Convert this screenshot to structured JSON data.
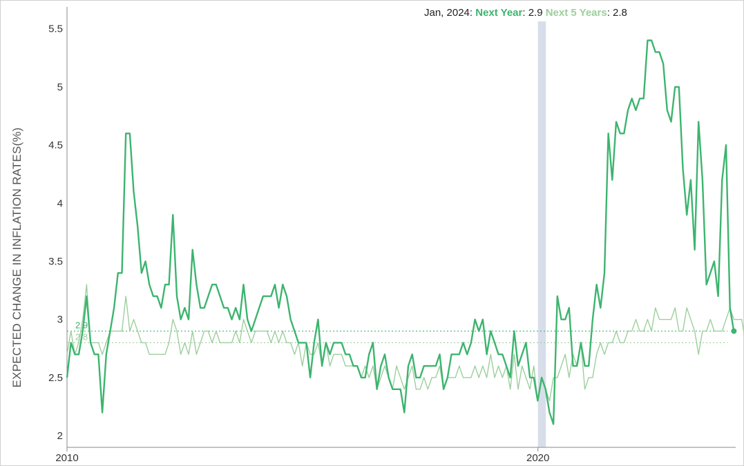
{
  "readout": {
    "date": "Jan, 2024",
    "series1_label": "Next Year",
    "series1_value": "2.9",
    "series2_label": "Next 5 Years",
    "series2_value": "2.8"
  },
  "chart_data": {
    "type": "line",
    "ylabel": "EXPECTED CHANGE IN INFLATION RATES(%)",
    "xlabel": "",
    "ylim": [
      1.9,
      5.7
    ],
    "xlim": [
      2010.0,
      2024.2
    ],
    "yticks": [
      "2",
      "2.5",
      "3",
      "3.5",
      "4",
      "4.5",
      "5",
      "5.5"
    ],
    "xticks": [
      {
        "label": "2010",
        "value": 2010
      },
      {
        "label": "2020",
        "value": 2020
      }
    ],
    "grid": false,
    "recession_band": [
      2020.0,
      2020.17
    ],
    "reference_lines": [
      {
        "value": 2.9,
        "label": "2.9",
        "color": "#3cb46e"
      },
      {
        "value": 2.8,
        "label": "2.8",
        "color": "#9ccf9c"
      }
    ],
    "series": [
      {
        "name": "Next Year",
        "color": "#3cb46e",
        "x_start": 2010.0,
        "x_step": 0.0833,
        "values": [
          2.5,
          2.8,
          2.7,
          2.7,
          2.9,
          3.2,
          2.8,
          2.7,
          2.7,
          2.2,
          2.7,
          2.9,
          3.1,
          3.4,
          3.4,
          4.6,
          4.6,
          4.1,
          3.8,
          3.4,
          3.5,
          3.3,
          3.2,
          3.2,
          3.1,
          3.3,
          3.3,
          3.9,
          3.2,
          3.0,
          3.1,
          3.0,
          3.6,
          3.3,
          3.1,
          3.1,
          3.2,
          3.3,
          3.3,
          3.2,
          3.1,
          3.1,
          3.0,
          3.1,
          3.0,
          3.3,
          3.0,
          2.9,
          3.0,
          3.1,
          3.2,
          3.2,
          3.2,
          3.3,
          3.1,
          3.3,
          3.2,
          3.0,
          2.9,
          2.8,
          2.8,
          2.8,
          2.5,
          2.8,
          3.0,
          2.6,
          2.8,
          2.7,
          2.8,
          2.8,
          2.8,
          2.7,
          2.7,
          2.6,
          2.6,
          2.5,
          2.5,
          2.7,
          2.8,
          2.4,
          2.6,
          2.7,
          2.5,
          2.4,
          2.4,
          2.4,
          2.2,
          2.6,
          2.7,
          2.5,
          2.5,
          2.6,
          2.6,
          2.6,
          2.6,
          2.7,
          2.4,
          2.5,
          2.7,
          2.7,
          2.7,
          2.8,
          2.7,
          2.8,
          3.0,
          2.9,
          3.0,
          2.7,
          2.9,
          2.8,
          2.7,
          2.7,
          2.6,
          2.5,
          2.9,
          2.6,
          2.7,
          2.8,
          2.5,
          2.5,
          2.3,
          2.5,
          2.4,
          2.2,
          2.1,
          3.2,
          3.0,
          3.0,
          3.1,
          2.6,
          2.6,
          2.8,
          2.6,
          2.6,
          3.0,
          3.3,
          3.1,
          3.4,
          4.6,
          4.2,
          4.7,
          4.6,
          4.6,
          4.8,
          4.9,
          4.8,
          4.9,
          4.9,
          5.4,
          5.4,
          5.3,
          5.3,
          5.2,
          4.8,
          4.7,
          5.0,
          5.0,
          4.3,
          3.9,
          4.2,
          3.6,
          4.7,
          4.2,
          3.3,
          3.4,
          3.5,
          3.2,
          4.2,
          4.5,
          3.1,
          2.9
        ]
      },
      {
        "name": "Next 5 Years",
        "color": "#9ccf9c",
        "x_start": 2010.0,
        "x_step": 0.0833,
        "values": [
          2.7,
          2.9,
          2.7,
          2.8,
          3.0,
          3.3,
          2.8,
          2.8,
          2.8,
          2.7,
          2.8,
          2.9,
          2.9,
          2.9,
          2.9,
          3.2,
          2.9,
          3.0,
          2.9,
          2.8,
          2.8,
          2.7,
          2.7,
          2.7,
          2.7,
          2.7,
          2.8,
          3.0,
          2.9,
          2.7,
          2.8,
          2.7,
          2.9,
          2.7,
          2.8,
          2.9,
          2.9,
          2.8,
          2.9,
          2.8,
          2.8,
          2.8,
          2.8,
          2.9,
          2.8,
          3.0,
          2.9,
          2.8,
          2.9,
          2.9,
          2.9,
          2.9,
          2.8,
          2.9,
          2.8,
          2.9,
          2.8,
          2.8,
          2.7,
          2.8,
          2.6,
          2.8,
          2.7,
          2.7,
          2.8,
          2.6,
          2.8,
          2.6,
          2.7,
          2.7,
          2.7,
          2.6,
          2.6,
          2.6,
          2.6,
          2.5,
          2.6,
          2.5,
          2.6,
          2.4,
          2.5,
          2.6,
          2.5,
          2.4,
          2.6,
          2.5,
          2.4,
          2.5,
          2.6,
          2.4,
          2.4,
          2.5,
          2.4,
          2.5,
          2.5,
          2.6,
          2.4,
          2.5,
          2.5,
          2.5,
          2.6,
          2.5,
          2.5,
          2.5,
          2.6,
          2.5,
          2.6,
          2.5,
          2.7,
          2.5,
          2.6,
          2.5,
          2.6,
          2.4,
          2.7,
          2.4,
          2.6,
          2.5,
          2.4,
          2.6,
          2.3,
          2.5,
          2.4,
          2.3,
          2.5,
          2.5,
          2.6,
          2.7,
          2.5,
          2.7,
          2.6,
          2.8,
          2.4,
          2.5,
          2.5,
          2.7,
          2.8,
          2.7,
          2.8,
          2.8,
          2.9,
          2.8,
          2.8,
          2.9,
          2.9,
          3.0,
          2.9,
          2.9,
          3.0,
          2.9,
          3.1,
          3.0,
          3.0,
          3.0,
          3.0,
          3.1,
          2.9,
          2.9,
          3.1,
          3.0,
          2.9,
          2.7,
          2.9,
          2.9,
          3.0,
          2.9,
          2.9,
          2.9,
          3.0,
          3.1,
          3.0,
          3.0,
          3.0,
          2.8,
          3.0,
          3.2,
          3.0,
          2.8
        ]
      }
    ]
  }
}
